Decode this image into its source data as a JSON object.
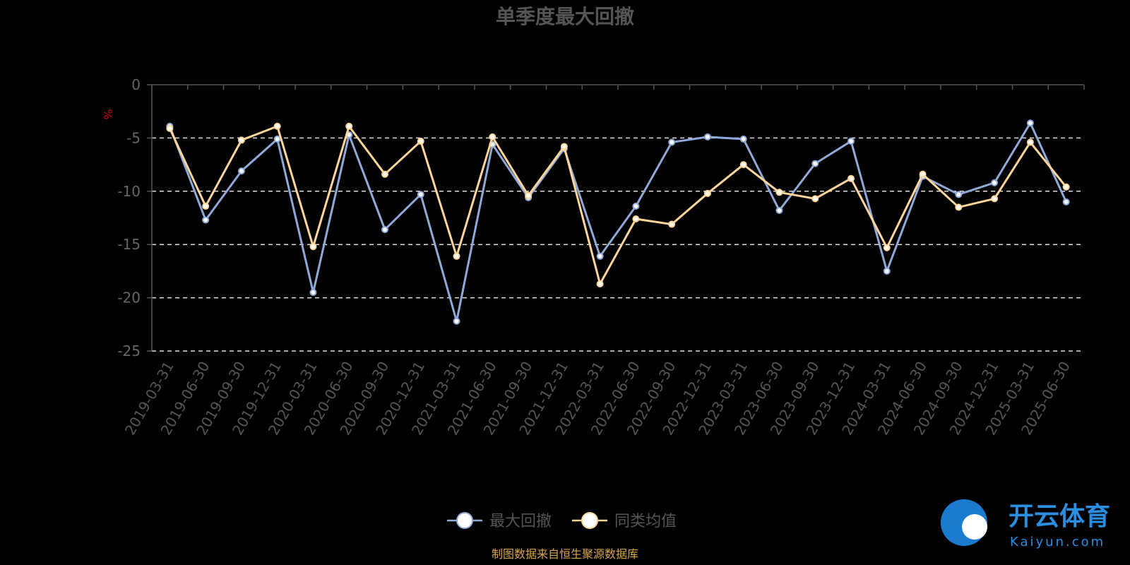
{
  "chart_data": {
    "type": "line",
    "title": "单季度最大回撤",
    "ylabel": "%",
    "ylim": [
      -25,
      0
    ],
    "yticks": [
      0,
      -5,
      -10,
      -15,
      -20,
      -25
    ],
    "categories": [
      "2019-03-31",
      "2019-06-30",
      "2019-09-30",
      "2019-12-31",
      "2020-03-31",
      "2020-06-30",
      "2020-09-30",
      "2020-12-31",
      "2021-03-31",
      "2021-06-30",
      "2021-09-30",
      "2021-12-31",
      "2022-03-31",
      "2022-06-30",
      "2022-09-30",
      "2022-12-31",
      "2023-03-31",
      "2023-06-30",
      "2023-09-30",
      "2023-12-31",
      "2024-03-31",
      "2024-06-30",
      "2024-09-30",
      "2024-12-31",
      "2025-03-31",
      "2025-06-30"
    ],
    "series": [
      {
        "name": "最大回撤",
        "color": "#8fa9d8",
        "values": [
          -3.9,
          -12.7,
          -8.1,
          -5.1,
          -19.5,
          -4.7,
          -13.6,
          -10.3,
          -22.2,
          -5.6,
          -10.6,
          -6.0,
          -16.1,
          -11.4,
          -5.4,
          -4.9,
          -5.1,
          -11.8,
          -7.4,
          -5.3,
          -17.5,
          -8.6,
          -10.3,
          -9.2,
          -3.6,
          -11.0
        ]
      },
      {
        "name": "同类均值",
        "color": "#ffd59a",
        "values": [
          -4.1,
          -11.4,
          -5.2,
          -3.9,
          -15.2,
          -3.9,
          -8.4,
          -5.3,
          -16.1,
          -4.9,
          -10.4,
          -5.8,
          -18.7,
          -12.6,
          -13.1,
          -10.2,
          -7.5,
          -10.1,
          -10.7,
          -8.8,
          -15.3,
          -8.4,
          -11.5,
          -10.7,
          -5.4,
          -9.6
        ]
      }
    ],
    "grid": true,
    "legend_position": "bottom-center"
  },
  "source_text": "制图数据来自恒生聚源数据库",
  "watermark": {
    "brand": "开云体育",
    "domain": "Kaiyun.com"
  }
}
